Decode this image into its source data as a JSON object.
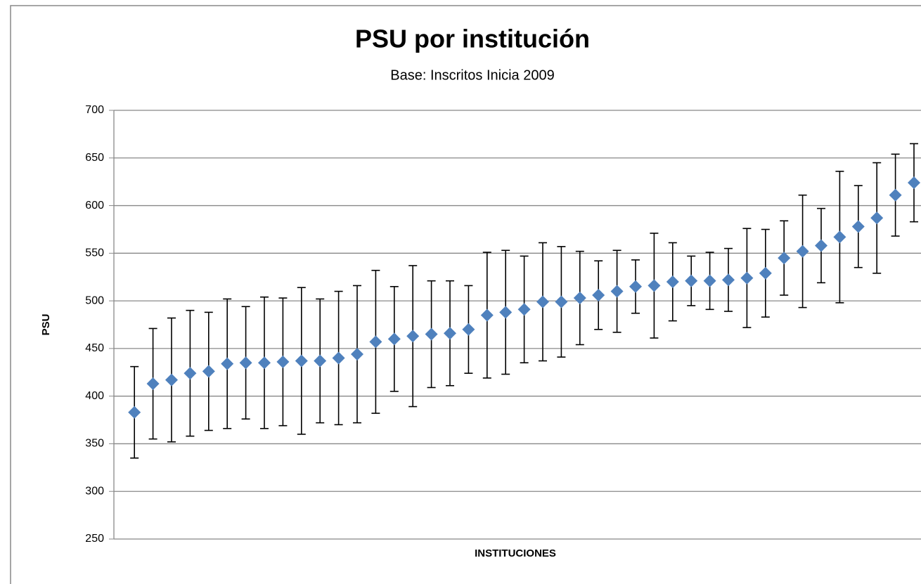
{
  "chart_data": {
    "type": "errorbar",
    "title": "PSU por institución",
    "subtitle": "Base: Inscritos Inicia 2009",
    "y_label": "PSU",
    "x_label": "INSTITUCIONES",
    "categories": [
      null,
      null,
      null,
      null,
      null,
      null,
      null,
      null,
      null,
      null,
      null,
      null,
      null,
      null,
      null,
      null,
      null,
      null,
      null,
      null,
      null,
      null,
      null,
      null,
      null,
      null,
      null,
      null,
      null,
      null,
      null,
      null,
      null,
      null,
      null,
      null,
      null,
      null,
      null,
      null,
      null,
      null,
      null
    ],
    "series": [
      {
        "name": "PSU",
        "color": "#4f81bd",
        "values": [
          383,
          413,
          417,
          424,
          426,
          434,
          435,
          435,
          436,
          437,
          437,
          440,
          444,
          457,
          460,
          463,
          465,
          466,
          470,
          485,
          488,
          491,
          499,
          499,
          503,
          506,
          510,
          515,
          516,
          520,
          521,
          521,
          522,
          524,
          529,
          545,
          552,
          558,
          567,
          578,
          587,
          611,
          624
        ],
        "errors": [
          48,
          58,
          65,
          66,
          62,
          68,
          59,
          69,
          67,
          77,
          65,
          70,
          72,
          75,
          55,
          74,
          56,
          55,
          46,
          66,
          65,
          56,
          62,
          58,
          49,
          36,
          43,
          28,
          55,
          41,
          26,
          30,
          33,
          52,
          46,
          39,
          59,
          39,
          69,
          43,
          58,
          43,
          41
        ]
      }
    ],
    "ylim": [
      250,
      700
    ],
    "yticks": [
      250,
      300,
      350,
      400,
      450,
      500,
      550,
      600,
      650,
      700
    ],
    "grid": true
  }
}
